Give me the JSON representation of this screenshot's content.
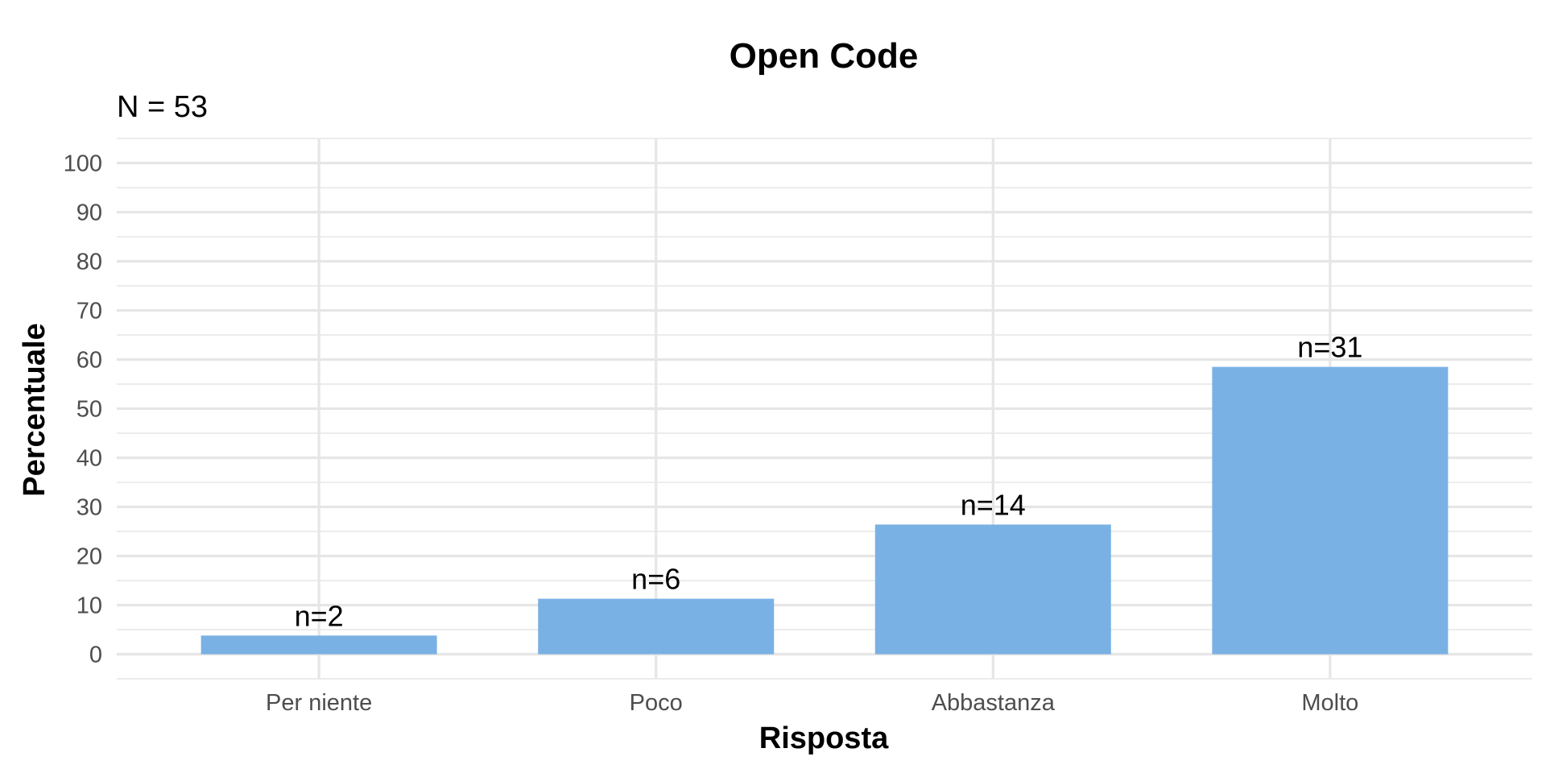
{
  "chart_data": {
    "type": "bar",
    "title": "Open Code",
    "subtitle": "N = 53",
    "xlabel": "Risposta",
    "ylabel": "Percentuale",
    "categories": [
      "Per niente",
      "Poco",
      "Abbastanza",
      "Molto"
    ],
    "values": [
      3.8,
      11.3,
      26.4,
      58.5
    ],
    "data_labels": [
      "n=2",
      "n=6",
      "n=14",
      "n=31"
    ],
    "ylim": [
      -5,
      105
    ],
    "yticks": [
      0,
      10,
      20,
      30,
      40,
      50,
      60,
      70,
      80,
      90,
      100
    ],
    "grid": true,
    "bar_color": "#7ab1e4",
    "grid_color": "#e6e6e6"
  }
}
